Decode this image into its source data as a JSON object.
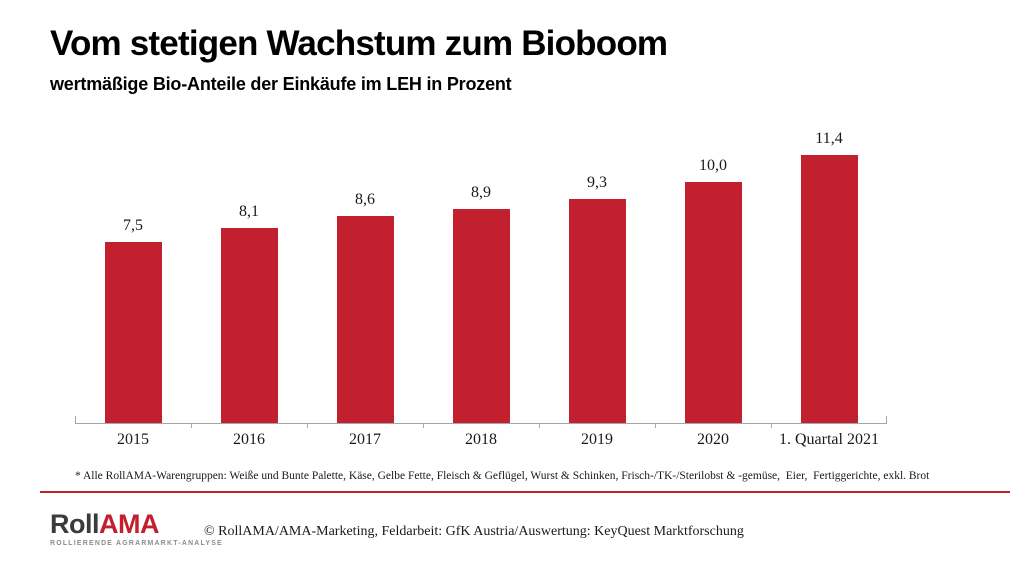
{
  "header": {
    "title": "Vom stetigen Wachstum zum Bioboom",
    "subtitle": "wertmäßige Bio-Anteile der Einkäufe im LEH in Prozent"
  },
  "chart_data": {
    "type": "bar",
    "title": "Vom stetigen Wachstum zum Bioboom",
    "subtitle": "wertmäßige Bio-Anteile der Einkäufe im LEH in Prozent",
    "categories": [
      "2015",
      "2016",
      "2017",
      "2018",
      "2019",
      "2020",
      "1. Quartal 2021"
    ],
    "values": [
      7.5,
      8.1,
      8.6,
      8.9,
      9.3,
      10.0,
      11.4
    ],
    "value_labels": [
      "7,5",
      "8,1",
      "8,6",
      "8,9",
      "9,3",
      "10,0",
      "11,4"
    ],
    "xlabel": "",
    "ylabel": "",
    "ylim": [
      0,
      12.2
    ],
    "grid": false,
    "legend": "none",
    "bar_color": "#c2202f",
    "axis_color": "#a6a6a6"
  },
  "footnote": "* Alle RollAMA-Warengruppen: Weiße und Bunte Palette, Käse, Gelbe Fette, Fleisch & Geflügel, Wurst & Schinken, Frisch-/TK-/Sterilobst & -gemüse,  Eier,  Fertiggerichte, exkl. Brot",
  "footer": {
    "logo": {
      "part1": "Roll",
      "part2": "AMA",
      "tagline": "ROLLIERENDE AGRARMARKT-ANALYSE"
    },
    "copyright": "© RollAMA/AMA-Marketing, Feldarbeit: GfK Austria/Auswertung: KeyQuest Marktforschung"
  },
  "colors": {
    "accent_red": "#c2202f",
    "axis_gray": "#a6a6a6",
    "logo_dark": "#3b3b3a",
    "logo_gray": "#8c8c8c",
    "text": "#1a1a1a"
  }
}
